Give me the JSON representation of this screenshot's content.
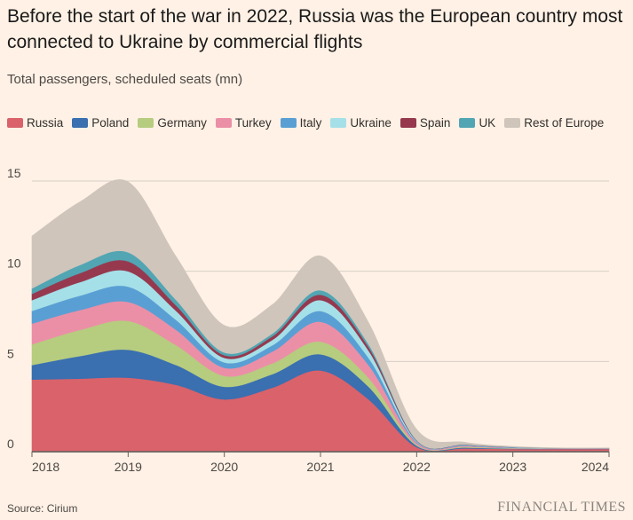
{
  "title": "Before the start of the war in 2022, Russia was the European country most connected to Ukraine by commercial flights",
  "subtitle": "Total passengers, scheduled seats (mn)",
  "source": "Source: Cirium",
  "brand": "FINANCIAL TIMES",
  "chart_data": {
    "type": "area",
    "stacked": true,
    "x": [
      2018,
      2018.5,
      2019,
      2019.5,
      2020,
      2020.5,
      2021,
      2021.5,
      2022,
      2022.5,
      2023,
      2023.5,
      2024
    ],
    "xticks": [
      "2018",
      "2019",
      "2020",
      "2021",
      "2022",
      "2023",
      "2024"
    ],
    "yticks": [
      "0",
      "5",
      "10",
      "15"
    ],
    "ylim": [
      0,
      15
    ],
    "xlim": [
      2018,
      2024
    ],
    "grid": true,
    "legend_position": "top",
    "series": [
      {
        "name": "Russia",
        "color": "#d9626b",
        "values": [
          4.0,
          4.05,
          4.1,
          3.7,
          2.9,
          3.55,
          4.5,
          2.9,
          0.25,
          0.18,
          0.15,
          0.15,
          0.15
        ]
      },
      {
        "name": "Poland",
        "color": "#3a6fb0",
        "values": [
          0.8,
          1.25,
          1.55,
          1.1,
          0.7,
          0.75,
          0.9,
          0.7,
          0.08,
          0.05,
          0.02,
          0.01,
          0.01
        ]
      },
      {
        "name": "Germany",
        "color": "#b6cc7f",
        "values": [
          1.15,
          1.45,
          1.6,
          1.1,
          0.6,
          0.6,
          0.7,
          0.5,
          0.06,
          0.04,
          0.02,
          0.01,
          0.01
        ]
      },
      {
        "name": "Turkey",
        "color": "#eb8fa7",
        "values": [
          1.15,
          1.1,
          1.05,
          0.85,
          0.45,
          0.65,
          1.1,
          0.7,
          0.1,
          0.05,
          0.02,
          0.01,
          0.01
        ]
      },
      {
        "name": "Italy",
        "color": "#5a9fd4",
        "values": [
          0.7,
          0.8,
          0.85,
          0.55,
          0.3,
          0.35,
          0.6,
          0.4,
          0.05,
          0.03,
          0.02,
          0.01,
          0.01
        ]
      },
      {
        "name": "Ukraine",
        "color": "#a5e0e8",
        "values": [
          0.6,
          0.75,
          0.85,
          0.5,
          0.25,
          0.3,
          0.6,
          0.4,
          0.05,
          0.02,
          0.01,
          0.01,
          0.01
        ]
      },
      {
        "name": "Spain",
        "color": "#96394f",
        "values": [
          0.35,
          0.5,
          0.55,
          0.3,
          0.15,
          0.2,
          0.3,
          0.2,
          0.03,
          0.02,
          0.01,
          0.0,
          0.0
        ]
      },
      {
        "name": "UK",
        "color": "#52a5b3",
        "values": [
          0.3,
          0.45,
          0.5,
          0.3,
          0.15,
          0.15,
          0.25,
          0.15,
          0.02,
          0.01,
          0.01,
          0.0,
          0.0
        ]
      },
      {
        "name": "Rest of Europe",
        "color": "#cfc5bb",
        "values": [
          2.9,
          3.5,
          3.9,
          2.4,
          1.5,
          1.6,
          1.9,
          1.2,
          0.6,
          0.12,
          0.03,
          0.01,
          0.01
        ]
      }
    ]
  }
}
